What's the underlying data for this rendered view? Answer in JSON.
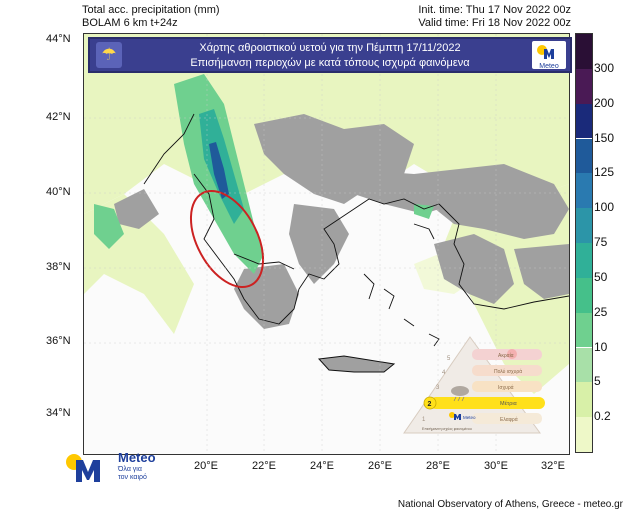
{
  "header": {
    "left_line1": "Total acc. precipitation (mm)",
    "left_line2": "BOLAM 6 km t+24z",
    "right_line1": "Init. time: Thu 17 Nov 2022 00z",
    "right_line2": "Valid time: Fri 18 Nov 2022 00z"
  },
  "banner": {
    "line1": "Χάρτης αθροιστικού υετού για την Πέμπτη 17/11/2022",
    "line2": "Επισήμανση περιοχών με κατά τόπους ισχυρά φαινόμενα",
    "logo_text": "Meteo",
    "icon": "rain-cloud-icon"
  },
  "axes": {
    "lat_labels": [
      "44°N",
      "42°N",
      "40°N",
      "38°N",
      "36°N",
      "34°N"
    ],
    "lon_labels": [
      "20°E",
      "22°E",
      "24°E",
      "26°E",
      "28°E",
      "30°E",
      "32°E"
    ]
  },
  "colorbar": {
    "labels": [
      "300",
      "200",
      "150",
      "125",
      "100",
      "75",
      "50",
      "25",
      "10",
      "5",
      "0.2"
    ],
    "colors": [
      "#4a1a55",
      "#1a2a7a",
      "#1f5a9a",
      "#2a7ab0",
      "#2c95a8",
      "#30b098",
      "#45c08a",
      "#6fd08f",
      "#a8e0a8",
      "#d8f0a8",
      "#eef8c8"
    ]
  },
  "legend": {
    "levels": [
      "5",
      "4",
      "3",
      "2",
      "1"
    ],
    "active_level": "2",
    "items": [
      "Ακραία",
      "Πολύ ισχυρά",
      "Ισχυρά",
      "Μέτρια",
      "Ελαφρά"
    ],
    "caption": "Επισήμανση ισχύος φαινομένου",
    "logo_text": "Meteo"
  },
  "logo": {
    "brand": "Meteo",
    "slogan_line1": "Όλα για",
    "slogan_line2": "τον καιρό"
  },
  "footer": "National Observatory of Athens, Greece - meteo.gr",
  "colors": {
    "banner_bg": "#3a3f8f",
    "land_gray": "#a0a0a0",
    "highlight_ellipse": "#cc2222",
    "logo_yellow": "#ffc800",
    "logo_blue": "#1e3f9c"
  }
}
